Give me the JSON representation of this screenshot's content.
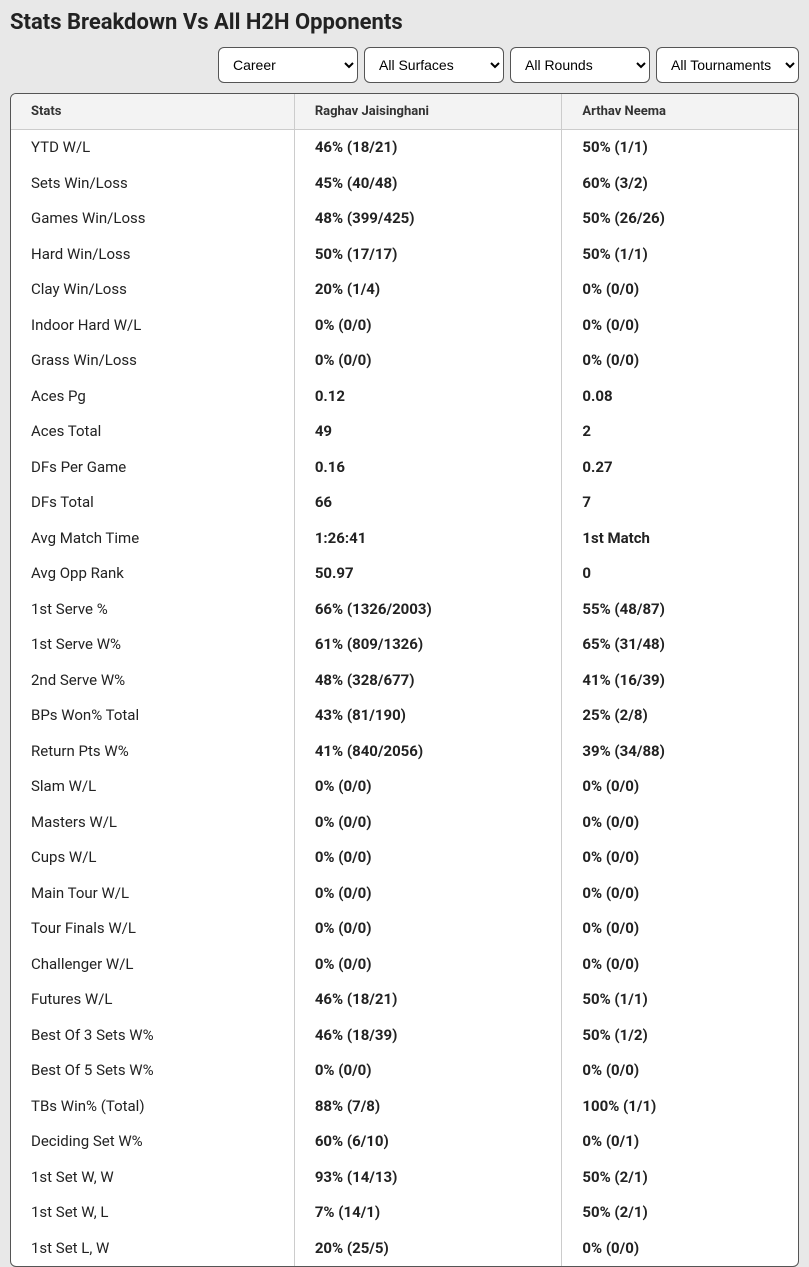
{
  "title": "Stats Breakdown Vs All H2H Opponents",
  "filters": {
    "period": "Career",
    "surface": "All Surfaces",
    "round": "All Rounds",
    "tournament": "All Tournaments"
  },
  "columns": {
    "stats": "Stats",
    "player1": "Raghav Jaisinghani",
    "player2": "Arthav Neema"
  },
  "rows": [
    {
      "stat": "YTD W/L",
      "p1": "46% (18/21)",
      "p2": "50% (1/1)"
    },
    {
      "stat": "Sets Win/Loss",
      "p1": "45% (40/48)",
      "p2": "60% (3/2)"
    },
    {
      "stat": "Games Win/Loss",
      "p1": "48% (399/425)",
      "p2": "50% (26/26)"
    },
    {
      "stat": "Hard Win/Loss",
      "p1": "50% (17/17)",
      "p2": "50% (1/1)"
    },
    {
      "stat": "Clay Win/Loss",
      "p1": "20% (1/4)",
      "p2": "0% (0/0)"
    },
    {
      "stat": "Indoor Hard W/L",
      "p1": "0% (0/0)",
      "p2": "0% (0/0)"
    },
    {
      "stat": "Grass Win/Loss",
      "p1": "0% (0/0)",
      "p2": "0% (0/0)"
    },
    {
      "stat": "Aces Pg",
      "p1": "0.12",
      "p2": "0.08"
    },
    {
      "stat": "Aces Total",
      "p1": "49",
      "p2": "2"
    },
    {
      "stat": "DFs Per Game",
      "p1": "0.16",
      "p2": "0.27"
    },
    {
      "stat": "DFs Total",
      "p1": "66",
      "p2": "7"
    },
    {
      "stat": "Avg Match Time",
      "p1": "1:26:41",
      "p2": "1st Match"
    },
    {
      "stat": "Avg Opp Rank",
      "p1": "50.97",
      "p2": "0"
    },
    {
      "stat": "1st Serve %",
      "p1": "66% (1326/2003)",
      "p2": "55% (48/87)"
    },
    {
      "stat": "1st Serve W%",
      "p1": "61% (809/1326)",
      "p2": "65% (31/48)"
    },
    {
      "stat": "2nd Serve W%",
      "p1": "48% (328/677)",
      "p2": "41% (16/39)"
    },
    {
      "stat": "BPs Won% Total",
      "p1": "43% (81/190)",
      "p2": "25% (2/8)"
    },
    {
      "stat": "Return Pts W%",
      "p1": "41% (840/2056)",
      "p2": "39% (34/88)"
    },
    {
      "stat": "Slam W/L",
      "p1": "0% (0/0)",
      "p2": "0% (0/0)"
    },
    {
      "stat": "Masters W/L",
      "p1": "0% (0/0)",
      "p2": "0% (0/0)"
    },
    {
      "stat": "Cups W/L",
      "p1": "0% (0/0)",
      "p2": "0% (0/0)"
    },
    {
      "stat": "Main Tour W/L",
      "p1": "0% (0/0)",
      "p2": "0% (0/0)"
    },
    {
      "stat": "Tour Finals W/L",
      "p1": "0% (0/0)",
      "p2": "0% (0/0)"
    },
    {
      "stat": "Challenger W/L",
      "p1": "0% (0/0)",
      "p2": "0% (0/0)"
    },
    {
      "stat": "Futures W/L",
      "p1": "46% (18/21)",
      "p2": "50% (1/1)"
    },
    {
      "stat": "Best Of 3 Sets W%",
      "p1": "46% (18/39)",
      "p2": "50% (1/2)"
    },
    {
      "stat": "Best Of 5 Sets W%",
      "p1": "0% (0/0)",
      "p2": "0% (0/0)"
    },
    {
      "stat": "TBs Win% (Total)",
      "p1": "88% (7/8)",
      "p2": "100% (1/1)"
    },
    {
      "stat": "Deciding Set W%",
      "p1": "60% (6/10)",
      "p2": "0% (0/1)"
    },
    {
      "stat": "1st Set W, W",
      "p1": "93% (14/13)",
      "p2": "50% (2/1)"
    },
    {
      "stat": "1st Set W, L",
      "p1": "7% (14/1)",
      "p2": "50% (2/1)"
    },
    {
      "stat": "1st Set L, W",
      "p1": "20% (25/5)",
      "p2": "0% (0/0)"
    }
  ]
}
